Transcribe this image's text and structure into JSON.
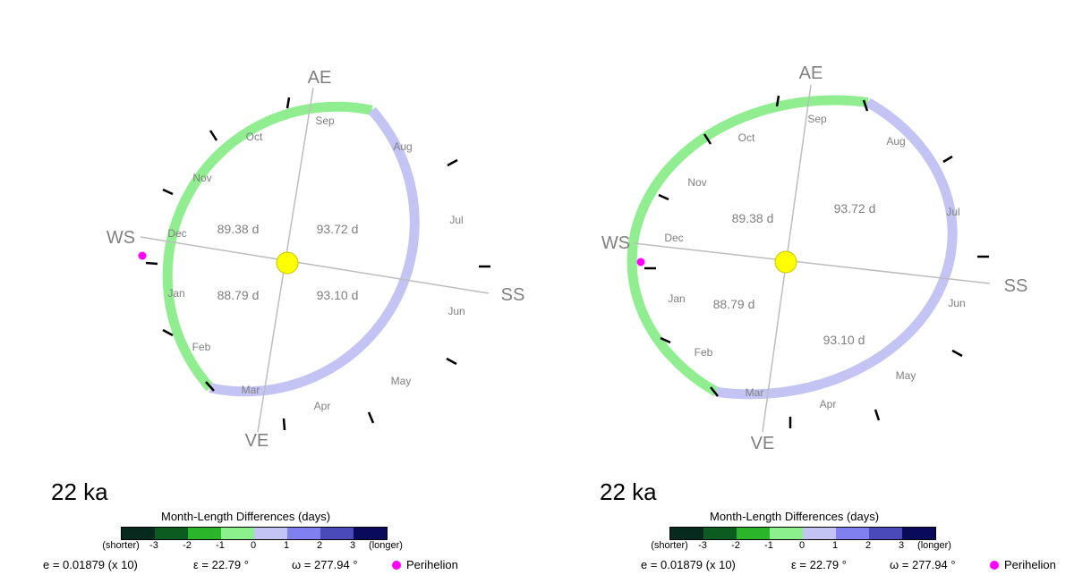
{
  "colors": {
    "green_arc": "#90ee90",
    "blue_arc": "#c4c4f4",
    "axis_line": "#bdbdbd",
    "sun": "#ffff00",
    "perihelion": "#ff00ff",
    "text_gray": "#808080"
  },
  "colorbar": {
    "title": "Month-Length Differences (days)",
    "colors": [
      "#062a1e",
      "#0c5c22",
      "#2bb52b",
      "#8cf08c",
      "#c4c4f4",
      "#8080f0",
      "#4a4ab8",
      "#0a0a5a"
    ],
    "ticks": [
      "(shorter)",
      "-3",
      "-2",
      "-1",
      "0",
      "1",
      "2",
      "3",
      "(longer)"
    ]
  },
  "panels": [
    {
      "age": "22 ka",
      "season_labels": {
        "ae": "AE",
        "ws": "WS",
        "ve": "VE",
        "ss": "SS"
      },
      "months": [
        "Jan",
        "Feb",
        "Mar",
        "Apr",
        "May",
        "Jun",
        "Jul",
        "Aug",
        "Sep",
        "Oct",
        "Nov",
        "Dec"
      ],
      "durations": {
        "ws_ae": "89.38 d",
        "ae_ss": "93.72 d",
        "ve_ws": "88.79 d",
        "ss_ve": "93.10 d"
      },
      "params": {
        "e": "e = 0.01879 (x 10)",
        "eps": "ε = 22.79 °",
        "omega": "ω = 277.94 °",
        "perihelion": "Perihelion"
      }
    },
    {
      "age": "22 ka",
      "season_labels": {
        "ae": "AE",
        "ws": "WS",
        "ve": "VE",
        "ss": "SS"
      },
      "months": [
        "Jan",
        "Feb",
        "Mar",
        "Apr",
        "May",
        "Jun",
        "Jul",
        "Aug",
        "Sep",
        "Oct",
        "Nov",
        "Dec"
      ],
      "durations": {
        "ws_ae": "89.38 d",
        "ae_ss": "93.72 d",
        "ve_ws": "88.79 d",
        "ss_ve": "93.10 d"
      },
      "params": {
        "e": "e = 0.01879 (x 10)",
        "eps": "ε = 22.79 °",
        "omega": "ω = 277.94 °",
        "perihelion": "Perihelion"
      }
    }
  ]
}
